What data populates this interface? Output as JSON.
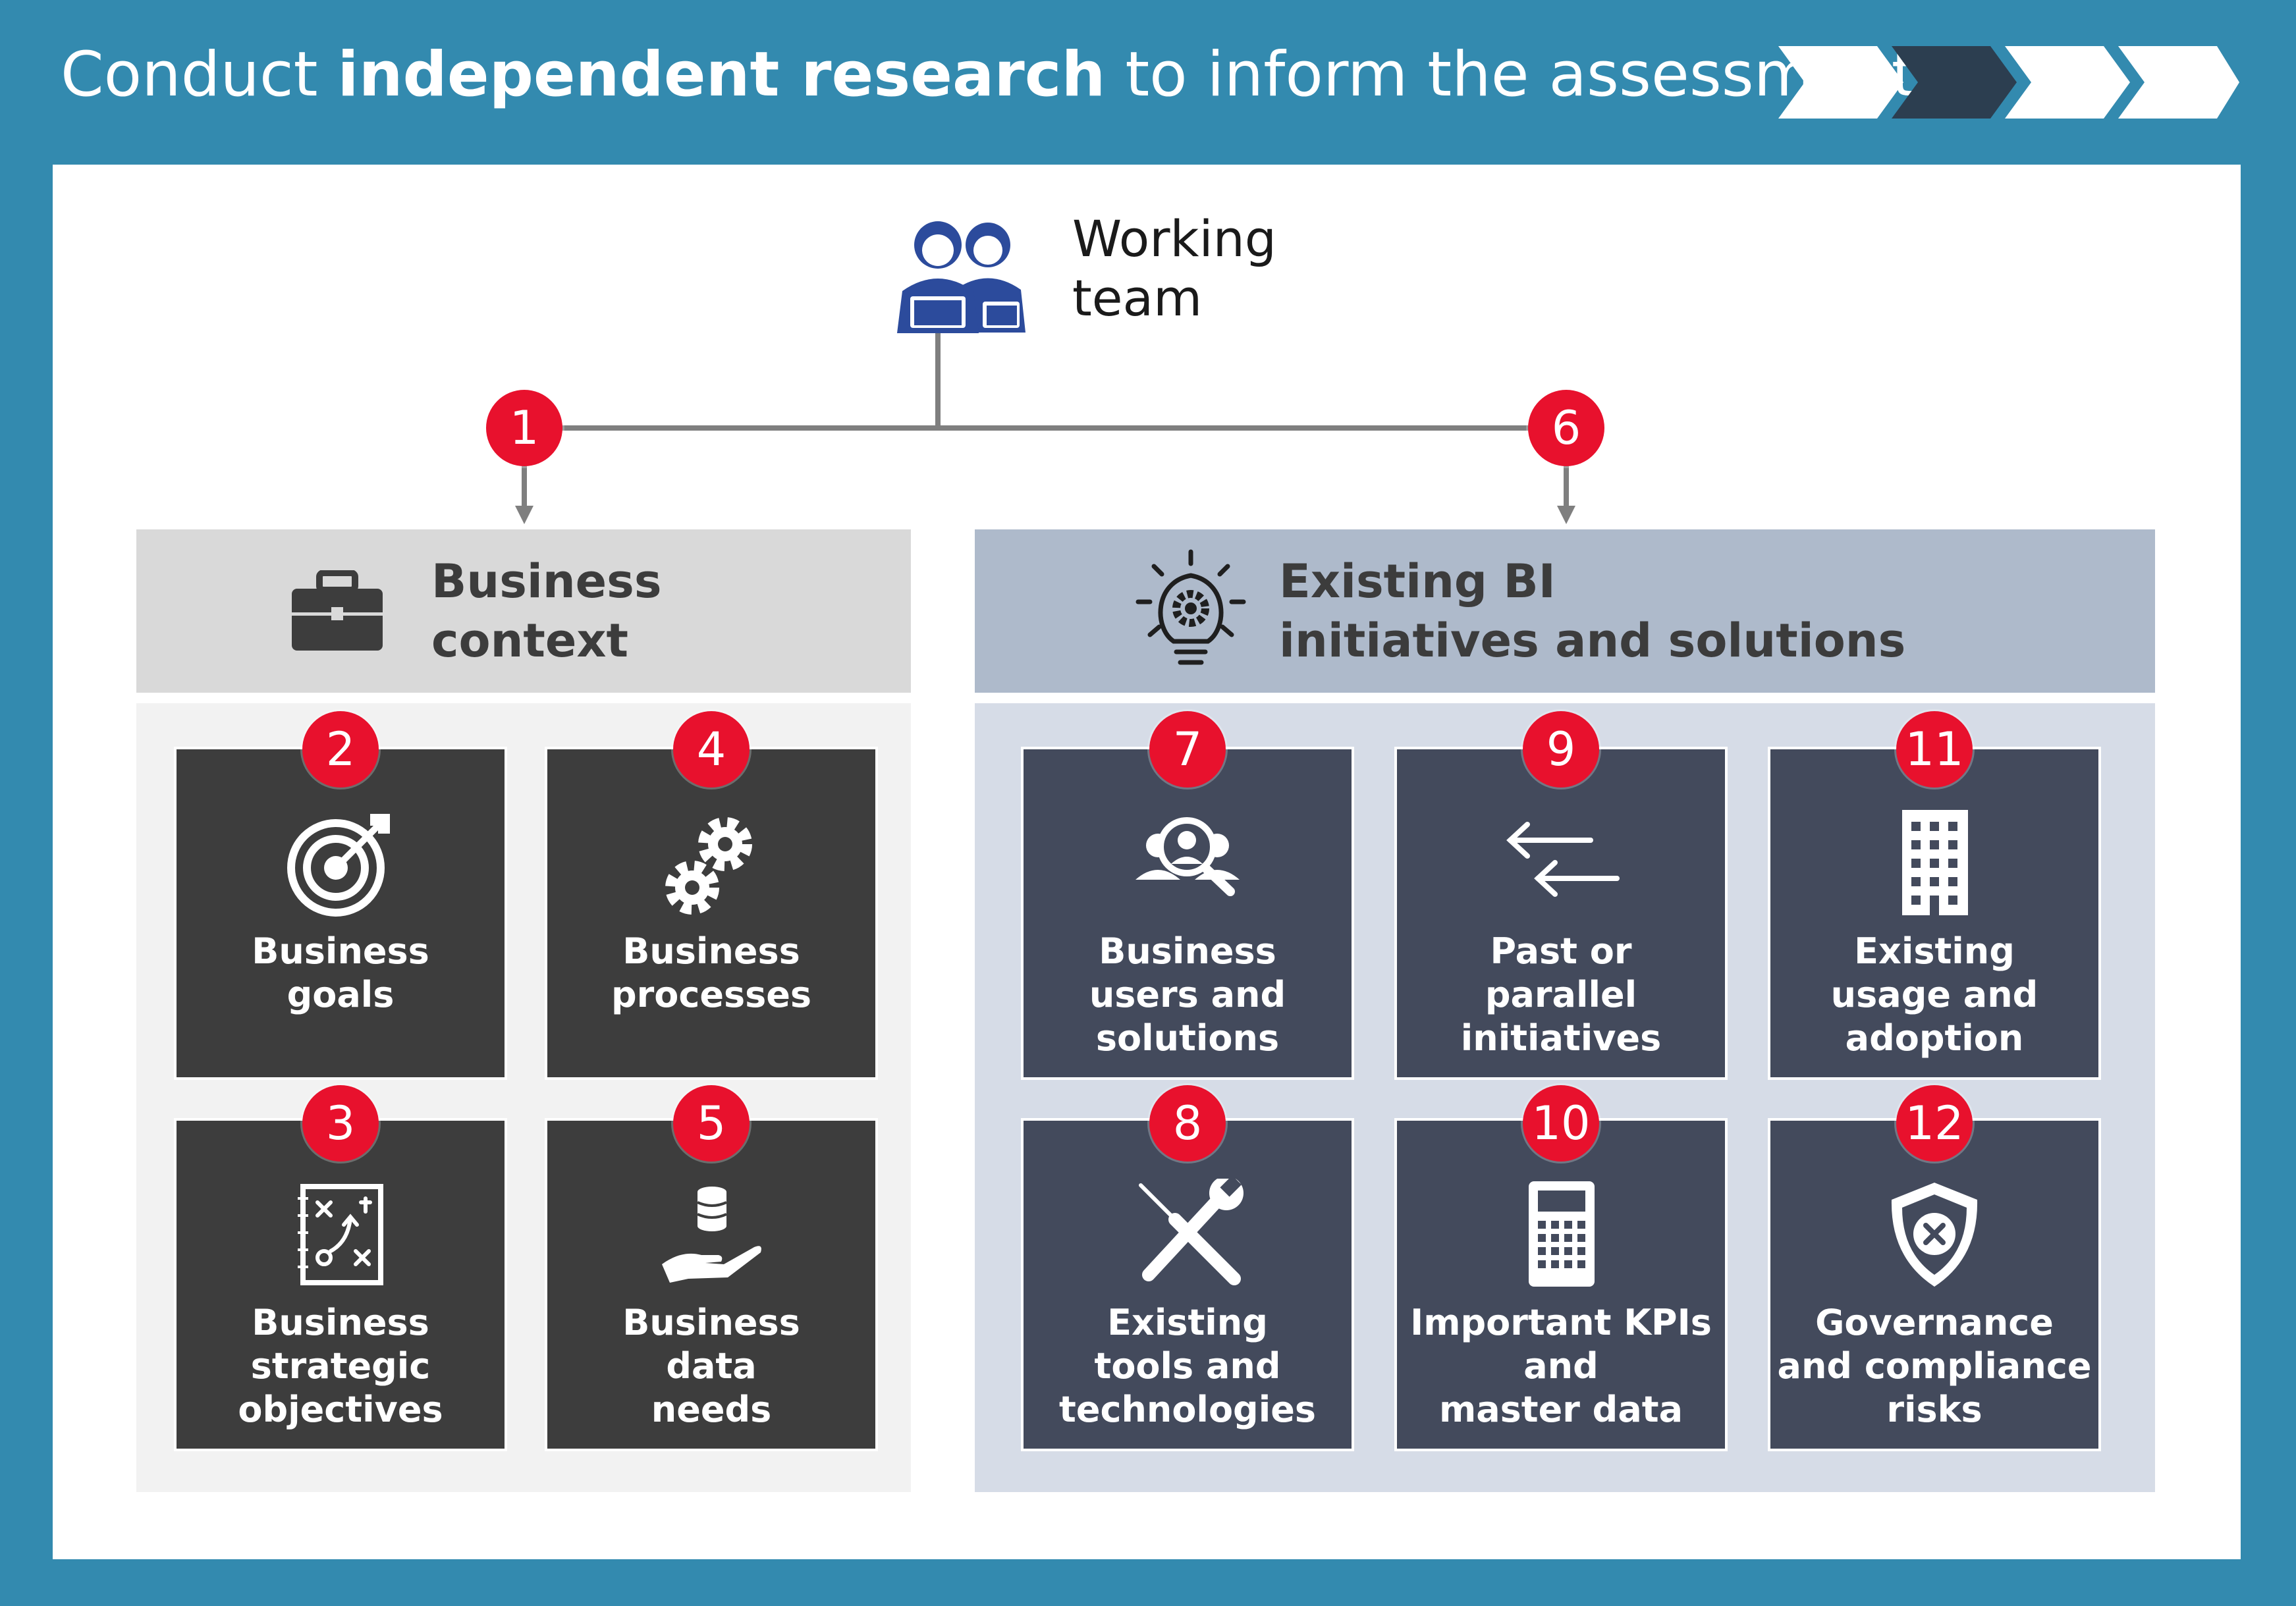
{
  "title": {
    "prefix": "Conduct",
    "bold": "independent research",
    "suffix": "to inform the assessments"
  },
  "working_team": {
    "label_line1": "Working",
    "label_line2": "team",
    "icon": "people-laptop-icon"
  },
  "business_context": {
    "heading_line1": "Business",
    "heading_line2": "context",
    "icon": "briefcase-icon",
    "badge": "1"
  },
  "existing_bi": {
    "heading_line1": "Existing BI",
    "heading_line2": "initiatives and solutions",
    "icon": "lightbulb-gear-icon",
    "badge": "6"
  },
  "tiles": [
    {
      "number": "2",
      "label": "Business\ngoals",
      "icon": "target-icon"
    },
    {
      "number": "4",
      "label": "Business\nprocesses",
      "icon": "gears-icon"
    },
    {
      "number": "3",
      "label": "Business\nstrategic\nobjectives",
      "icon": "strategy-board-icon"
    },
    {
      "number": "5",
      "label": "Business\ndata\nneeds",
      "icon": "hand-database-icon"
    },
    {
      "number": "7",
      "label": "Business\nusers and\nsolutions",
      "icon": "user-search-icon"
    },
    {
      "number": "9",
      "label": "Past or\nparallel\ninitiatives",
      "icon": "arrows-left-icon"
    },
    {
      "number": "11",
      "label": "Existing\nusage and\nadoption",
      "icon": "building-icon"
    },
    {
      "number": "8",
      "label": "Existing\ntools and\ntechnologies",
      "icon": "tools-icon"
    },
    {
      "number": "10",
      "label": "Important KPIs\nand\nmaster data",
      "icon": "calculator-icon"
    },
    {
      "number": "12",
      "label": "Governance\nand compliance\nrisks",
      "icon": "shield-x-icon"
    }
  ],
  "colors": {
    "frame": "#338aaf",
    "badge": "#e8112d",
    "dark_tile": "#3d3d3d",
    "slate_tile": "#434a5c",
    "chevron_active": "#2c3e50"
  }
}
